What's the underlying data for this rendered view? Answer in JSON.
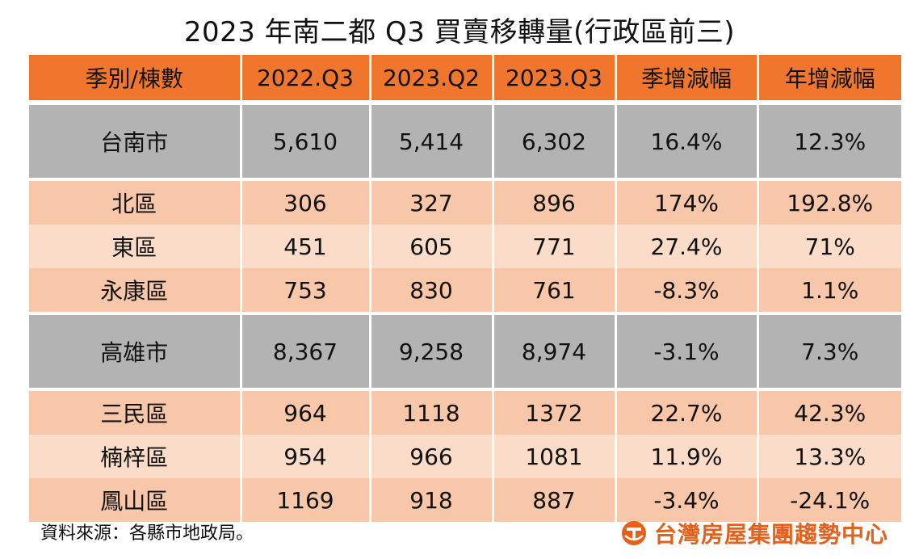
{
  "title": "2023 年南二都 Q3 買賣移轉量(行政區前三)",
  "table": {
    "headers": [
      "季別/棟數",
      "2022.Q3",
      "2023.Q2",
      "2023.Q3",
      "季增減幅",
      "年增減幅"
    ],
    "rows": [
      {
        "type": "city",
        "cells": [
          "台南市",
          "5,610",
          "5,414",
          "6,302",
          "16.4%",
          "12.3%"
        ]
      },
      {
        "type": "district",
        "cells": [
          "北區",
          "306",
          "327",
          "896",
          "174%",
          "192.8%"
        ]
      },
      {
        "type": "district",
        "cells": [
          "東區",
          "451",
          "605",
          "771",
          "27.4%",
          "71%"
        ]
      },
      {
        "type": "district",
        "cells": [
          "永康區",
          "753",
          "830",
          "761",
          "-8.3%",
          "1.1%"
        ]
      },
      {
        "type": "city",
        "cells": [
          "高雄市",
          "8,367",
          "9,258",
          "8,974",
          "-3.1%",
          "7.3%"
        ]
      },
      {
        "type": "district",
        "cells": [
          "三民區",
          "964",
          "1118",
          "1372",
          "22.7%",
          "42.3%"
        ]
      },
      {
        "type": "district",
        "cells": [
          "楠梓區",
          "954",
          "966",
          "1081",
          "11.9%",
          "13.3%"
        ]
      },
      {
        "type": "district",
        "cells": [
          "鳳山區",
          "1169",
          "918",
          "887",
          "-3.4%",
          "-24.1%"
        ]
      }
    ]
  },
  "footer": {
    "source_note": "資料來源：各縣市地政局。",
    "logo_text": "台灣房屋集團趨勢中心",
    "logo_icon": "company-logo-mark"
  },
  "colors": {
    "header": "#f0762e",
    "city_row": "#b3b3b3",
    "district_a": "#f8c6a8",
    "district_b": "#fbdcc8",
    "logo": "#e2611c"
  }
}
